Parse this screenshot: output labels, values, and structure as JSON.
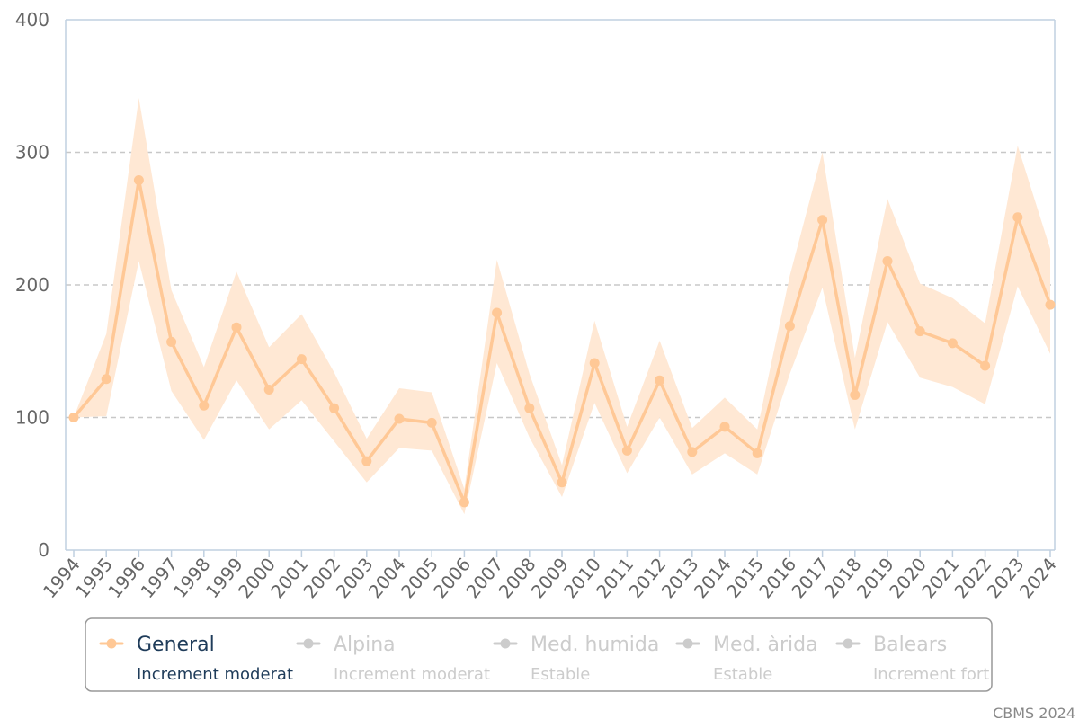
{
  "chart_data": {
    "type": "line",
    "title": "",
    "xlabel": "",
    "ylabel": "",
    "ylim": [
      0,
      400
    ],
    "yticks": [
      "0",
      "100",
      "200",
      "300",
      "400"
    ],
    "grid": true,
    "legend_placement": "bottom",
    "x": [
      "1994",
      "1995",
      "1996",
      "1997",
      "1998",
      "1999",
      "2000",
      "2001",
      "2002",
      "2003",
      "2004",
      "2005",
      "2006",
      "2007",
      "2008",
      "2009",
      "2010",
      "2011",
      "2012",
      "2013",
      "2014",
      "2015",
      "2016",
      "2017",
      "2018",
      "2019",
      "2020",
      "2021",
      "2022",
      "2023",
      "2024"
    ],
    "series": [
      {
        "name": "General",
        "trend": "Increment moderat",
        "visible": true,
        "color": "#ffc896",
        "band_color": "#ffe8d4",
        "values": [
          100,
          129,
          279,
          157,
          109,
          168,
          121,
          144,
          107,
          67,
          99,
          96,
          36,
          179,
          107,
          51,
          141,
          75,
          128,
          74,
          93,
          73,
          169,
          249,
          117,
          218,
          165,
          156,
          139,
          251,
          185
        ],
        "lower": [
          100,
          101,
          218,
          120,
          83,
          128,
          91,
          113,
          82,
          51,
          77,
          75,
          27,
          141,
          85,
          40,
          111,
          58,
          100,
          57,
          73,
          57,
          133,
          198,
          91,
          172,
          130,
          123,
          110,
          199,
          148
        ],
        "upper": [
          100,
          163,
          341,
          196,
          138,
          210,
          153,
          178,
          134,
          84,
          122,
          119,
          46,
          219,
          133,
          64,
          173,
          93,
          158,
          92,
          115,
          91,
          207,
          300,
          145,
          265,
          201,
          190,
          171,
          305,
          227
        ]
      },
      {
        "name": "Alpina",
        "trend": "Increment moderat",
        "visible": false,
        "color": "#cccccc"
      },
      {
        "name": "Med. humida",
        "trend": "Estable",
        "visible": false,
        "color": "#cccccc"
      },
      {
        "name": "Med. àrida",
        "trend": "Estable",
        "visible": false,
        "color": "#cccccc"
      },
      {
        "name": "Balears",
        "trend": "Increment fort",
        "visible": false,
        "color": "#cccccc"
      }
    ]
  },
  "credit": "CBMS 2024",
  "colors": {
    "axis": "#c0d0e0",
    "grid": "#c8c8c8",
    "legend_active": "#1f3c5a",
    "legend_inactive": "#cccccc",
    "legend_border": "#999999"
  }
}
